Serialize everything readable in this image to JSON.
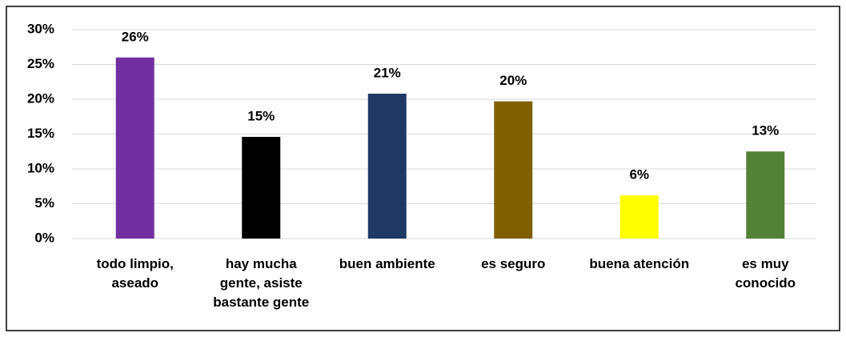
{
  "chart_data": {
    "type": "bar",
    "categories": [
      "todo limpio, aseado",
      "hay mucha gente, asiste bastante gente",
      "buen ambiente",
      "es seguro",
      "buena atención",
      "es muy conocido"
    ],
    "values": [
      26,
      14.6,
      20.8,
      19.7,
      6.2,
      12.5
    ],
    "value_labels": [
      "26%",
      "15%",
      "21%",
      "20%",
      "6%",
      "13%"
    ],
    "colors": [
      "#7030a0",
      "#000000",
      "#1f3864",
      "#7f6000",
      "#ffff00",
      "#538135"
    ],
    "ylim": [
      0,
      30
    ],
    "yticks": [
      {
        "value": 0,
        "label": "0%"
      },
      {
        "value": 5,
        "label": "5%"
      },
      {
        "value": 10,
        "label": "10%"
      },
      {
        "value": 15,
        "label": "15%"
      },
      {
        "value": 20,
        "label": "20%"
      },
      {
        "value": 25,
        "label": "25%"
      },
      {
        "value": 30,
        "label": "30%"
      }
    ],
    "grid": true
  }
}
